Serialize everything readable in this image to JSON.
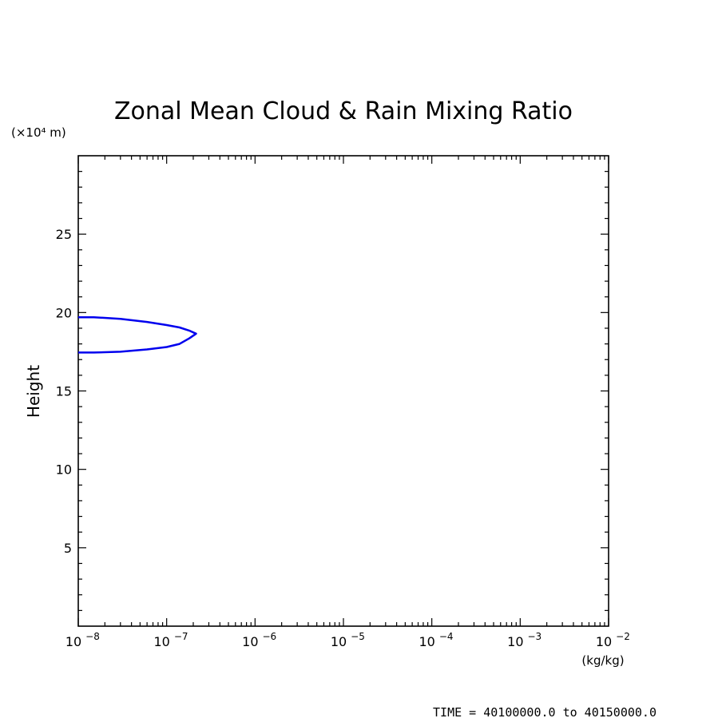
{
  "chart_data": {
    "type": "line",
    "title": "Zonal Mean Cloud & Rain Mixing Ratio",
    "ylabel": "Height",
    "y_unit_label": "(×10⁴ m)",
    "xunit": "(kg/kg)",
    "xscale": "log",
    "xlim": [
      1e-08,
      0.01
    ],
    "ylim": [
      0,
      30
    ],
    "x_ticks": [
      {
        "value": 1e-08,
        "base": "10",
        "exp": "−8"
      },
      {
        "value": 1e-07,
        "base": "10",
        "exp": "−7"
      },
      {
        "value": 1e-06,
        "base": "10",
        "exp": "−6"
      },
      {
        "value": 1e-05,
        "base": "10",
        "exp": "−5"
      },
      {
        "value": 0.0001,
        "base": "10",
        "exp": "−4"
      },
      {
        "value": 0.001,
        "base": "10",
        "exp": "−3"
      },
      {
        "value": 0.01,
        "base": "10",
        "exp": "−2"
      }
    ],
    "y_ticks": [
      5,
      10,
      15,
      20,
      25
    ],
    "y_tick_labels": [
      "5",
      "10",
      "15",
      "20",
      "25"
    ],
    "grid": false,
    "series": [
      {
        "color": "#0000ee",
        "points": [
          [
            1e-08,
            19.7
          ],
          [
            1.5e-08,
            19.7
          ],
          [
            3e-08,
            19.6
          ],
          [
            6e-08,
            19.4
          ],
          [
            1e-07,
            19.2
          ],
          [
            1.4e-07,
            19.05
          ],
          [
            1.8e-07,
            18.85
          ],
          [
            2.15e-07,
            18.65
          ],
          [
            1.8e-07,
            18.35
          ],
          [
            1.4e-07,
            18.0
          ],
          [
            1e-07,
            17.8
          ],
          [
            6e-08,
            17.65
          ],
          [
            3e-08,
            17.5
          ],
          [
            1.5e-08,
            17.45
          ],
          [
            1e-08,
            17.45
          ]
        ]
      }
    ]
  },
  "footer": {
    "time_text": "TIME = 40100000.0 to 40150000.0"
  }
}
